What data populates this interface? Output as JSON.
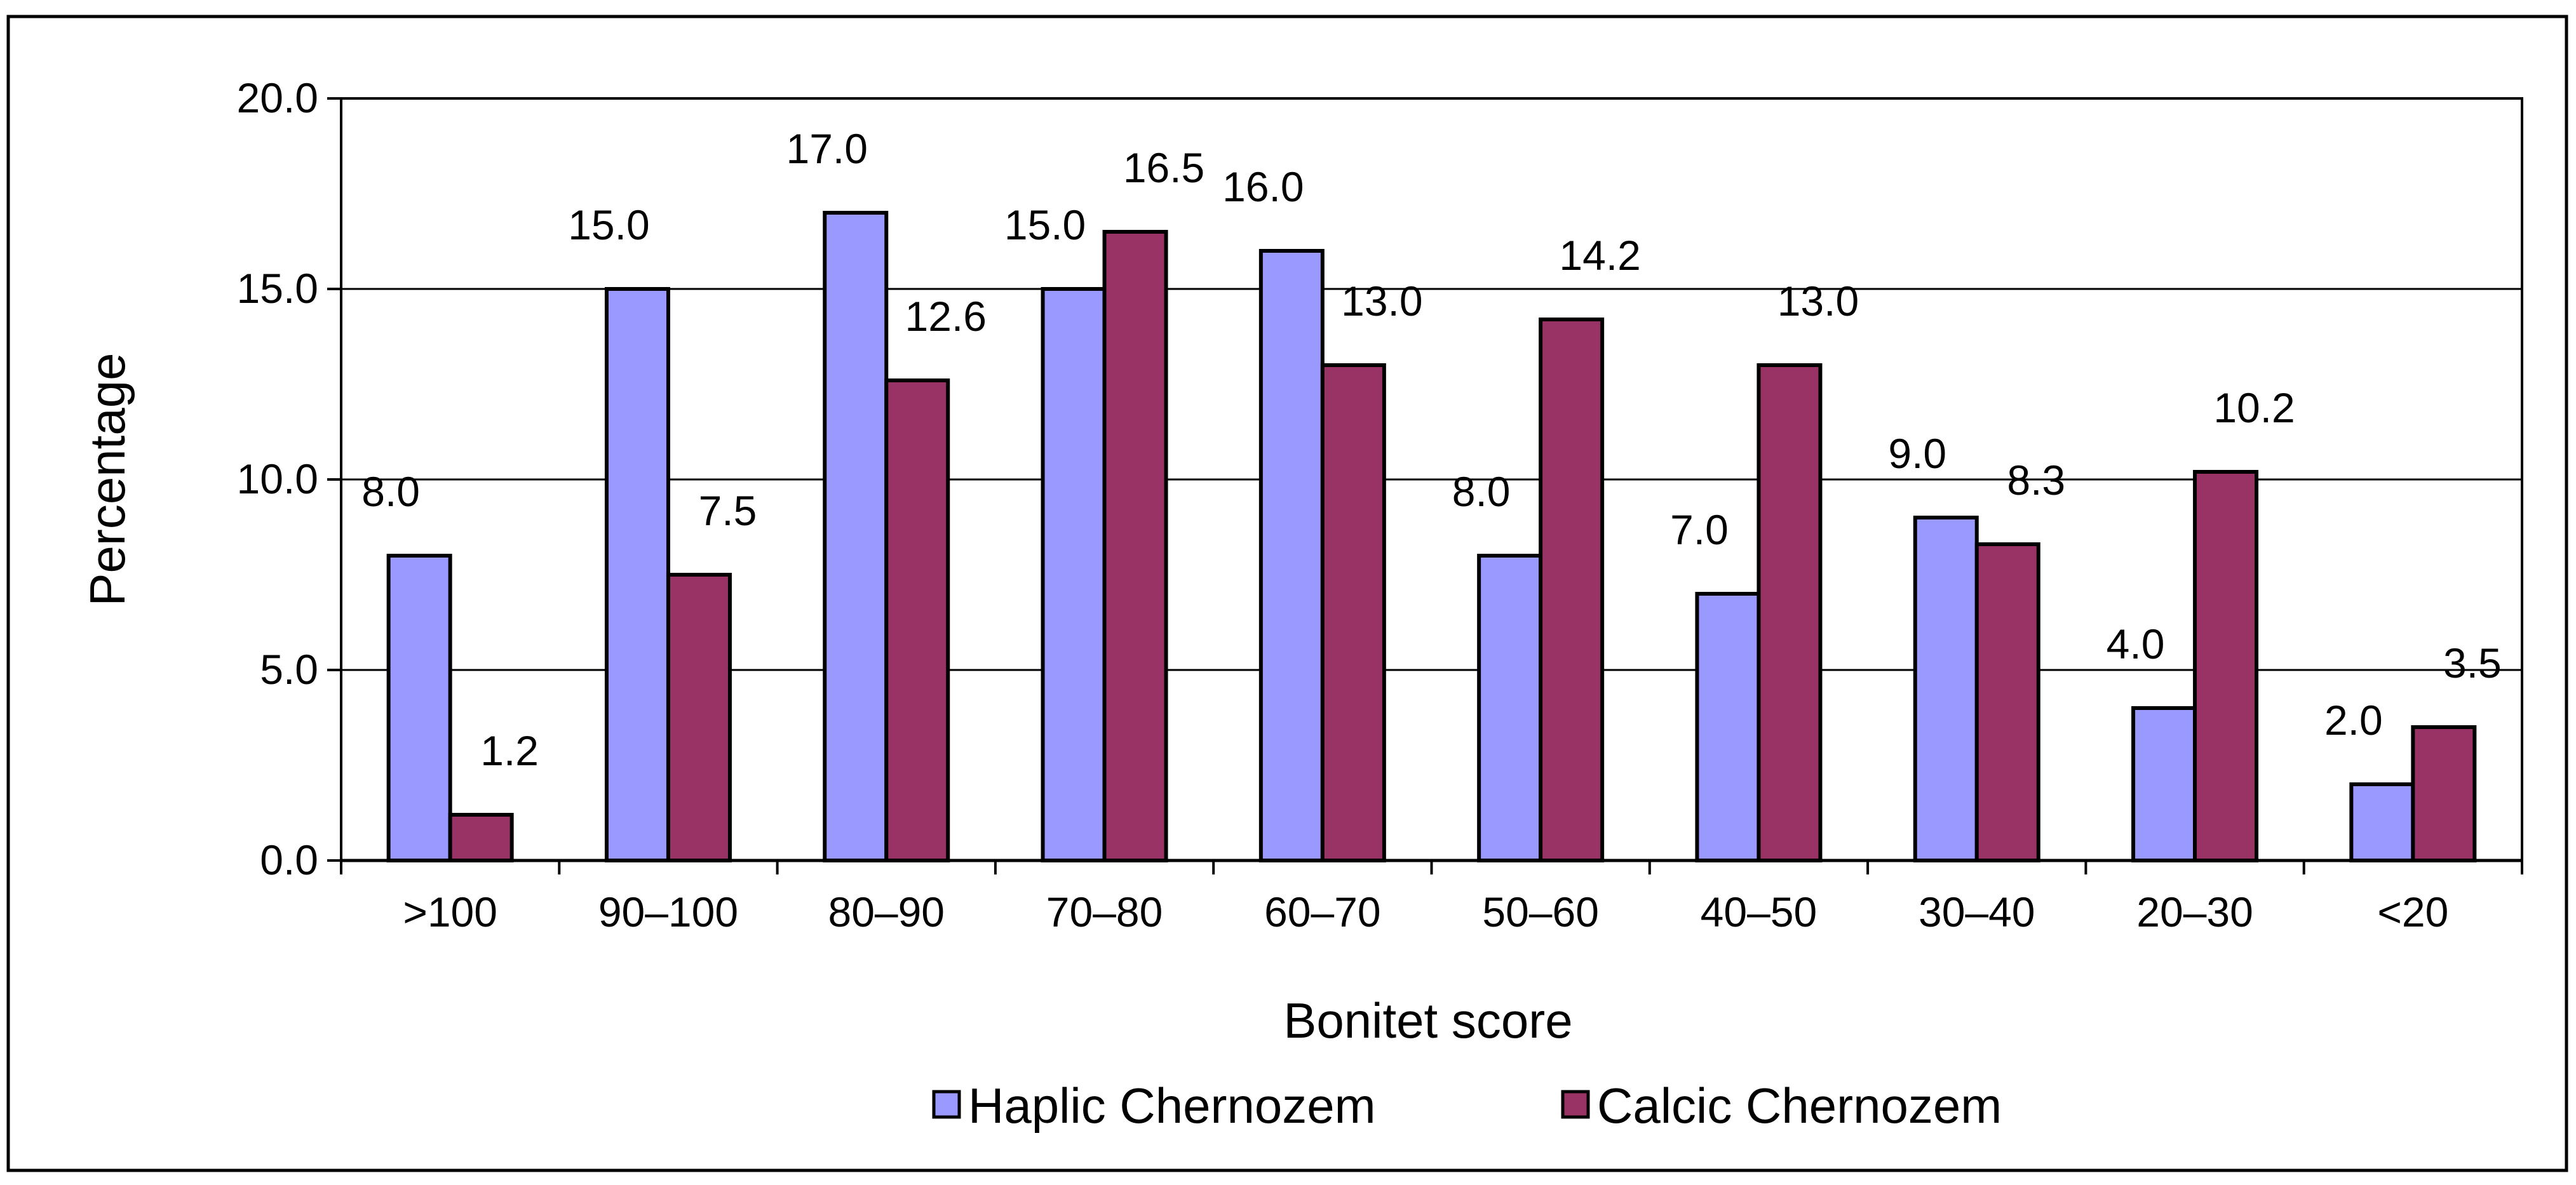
{
  "chart_data": {
    "type": "bar",
    "title": "",
    "xlabel": "Bonitet score",
    "ylabel": "Percentage",
    "ylim": [
      0,
      20
    ],
    "yticks": [
      "0.0",
      "5.0",
      "10.0",
      "15.0",
      "20.0"
    ],
    "ytick_values": [
      0,
      5,
      10,
      15,
      20
    ],
    "grid": true,
    "legend_position": "bottom",
    "categories": [
      ">100",
      "90–100",
      "80–90",
      "70–80",
      "60–70",
      "50–60",
      "40–50",
      "30–40",
      "20–30",
      "<20"
    ],
    "series": [
      {
        "name": "Haplic Chernozem",
        "color": "#9999ff",
        "values": [
          8.0,
          15.0,
          17.0,
          15.0,
          16.0,
          8.0,
          7.0,
          9.0,
          4.0,
          2.0
        ],
        "labels": [
          "8.0",
          "15.0",
          "17.0",
          "15.0",
          "16.0",
          "8.0",
          "7.0",
          "9.0",
          "4.0",
          "2.0"
        ]
      },
      {
        "name": "Calcic Chernozem",
        "color": "#993366",
        "values": [
          1.2,
          7.5,
          12.6,
          16.5,
          13.0,
          14.2,
          13.0,
          8.3,
          10.2,
          3.5
        ],
        "labels": [
          "1.2",
          "7.5",
          "12.6",
          "16.5",
          "13.0",
          "14.2",
          "13.0",
          "8.3",
          "10.2",
          "3.5"
        ]
      }
    ]
  }
}
